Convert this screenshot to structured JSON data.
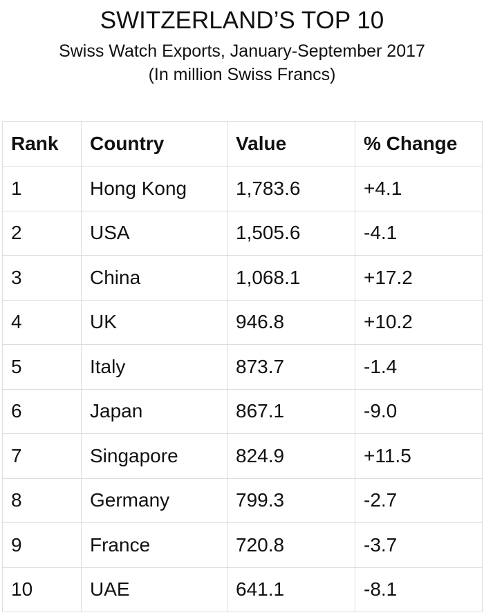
{
  "header": {
    "title": "SWITZERLAND’S TOP 10",
    "subtitle": "Swiss Watch Exports, January-September 2017",
    "unit": "(In million Swiss Francs)"
  },
  "table": {
    "columns": [
      "Rank",
      "Country",
      "Value",
      "% Change"
    ],
    "rows": [
      [
        "1",
        "Hong Kong",
        "1,783.6",
        "+4.1"
      ],
      [
        "2",
        "USA",
        "1,505.6",
        "-4.1"
      ],
      [
        "3",
        "China",
        "1,068.1",
        "+17.2"
      ],
      [
        "4",
        "UK",
        "946.8",
        "+10.2"
      ],
      [
        "5",
        "Italy",
        "873.7",
        "-1.4"
      ],
      [
        "6",
        "Japan",
        "867.1",
        "-9.0"
      ],
      [
        "7",
        "Singapore",
        "824.9",
        "+11.5"
      ],
      [
        "8",
        "Germany",
        "799.3",
        "-2.7"
      ],
      [
        "9",
        "France",
        "720.8",
        "-3.7"
      ],
      [
        "10",
        "UAE",
        "641.1",
        "-8.1"
      ]
    ]
  }
}
